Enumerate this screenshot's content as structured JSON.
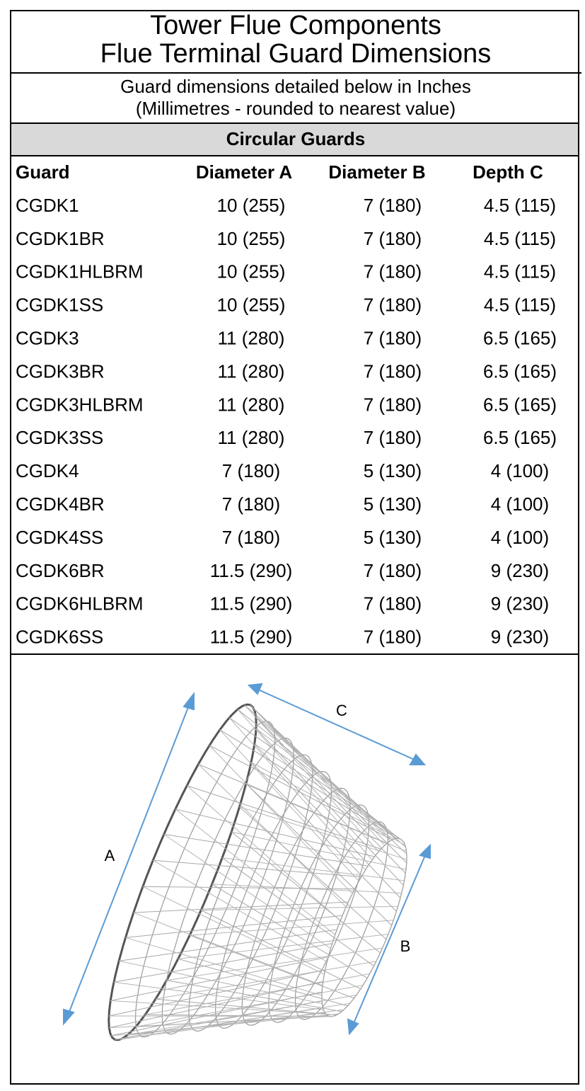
{
  "header": {
    "title_lines": [
      "Tower Flue Components",
      "Flue Terminal Guard Dimensions"
    ],
    "subtitle_lines": [
      "Guard dimensions detailed below in Inches",
      "(Millimetres - rounded to nearest value)"
    ]
  },
  "table": {
    "section": "Circular Guards",
    "columns": [
      "Guard",
      "Diameter A",
      "Diameter B",
      "Depth C"
    ],
    "rows": [
      [
        "CGDK1",
        "10 (255)",
        "7 (180)",
        "4.5 (115)"
      ],
      [
        "CGDK1BR",
        "10 (255)",
        "7 (180)",
        "4.5 (115)"
      ],
      [
        "CGDK1HLBRM",
        "10 (255)",
        "7 (180)",
        "4.5 (115)"
      ],
      [
        "CGDK1SS",
        "10 (255)",
        "7 (180)",
        "4.5 (115)"
      ],
      [
        "CGDK3",
        "11 (280)",
        "7 (180)",
        "6.5 (165)"
      ],
      [
        "CGDK3BR",
        "11 (280)",
        "7 (180)",
        "6.5 (165)"
      ],
      [
        "CGDK3HLBRM",
        "11 (280)",
        "7 (180)",
        "6.5 (165)"
      ],
      [
        "CGDK3SS",
        "11 (280)",
        "7 (180)",
        "6.5 (165)"
      ],
      [
        "CGDK4",
        "7 (180)",
        "5 (130)",
        "4 (100)"
      ],
      [
        "CGDK4BR",
        "7 (180)",
        "5 (130)",
        "4 (100)"
      ],
      [
        "CGDK4SS",
        "7 (180)",
        "5 (130)",
        "4 (100)"
      ],
      [
        "CGDK6BR",
        "11.5 (290)",
        "7 (180)",
        "9 (230)"
      ],
      [
        "CGDK6HLBRM",
        "11.5 (290)",
        "7 (180)",
        "9 (230)"
      ],
      [
        "CGDK6SS",
        "11.5 (290)",
        "7 (180)",
        "9 (230)"
      ]
    ]
  },
  "diagram": {
    "labels": [
      "A",
      "B",
      "C"
    ]
  }
}
